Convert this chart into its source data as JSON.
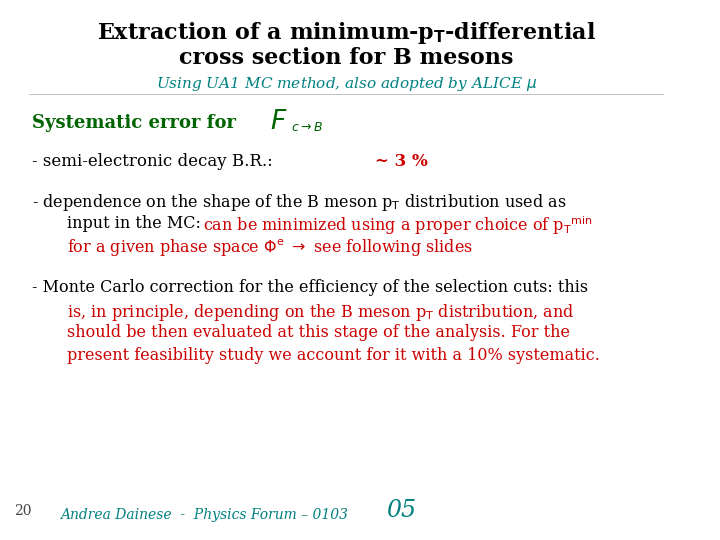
{
  "title_line1": "Extraction of a minimum-p$_\\mathbf{T}$-differential",
  "title_line2": "cross section for B mesons",
  "subtitle": "Using UA1 MC method, also adopted by ALICE $\\mu$",
  "bg_color": "#ffffff",
  "title_color": "#000000",
  "subtitle_color": "#008080",
  "dark_green": "#006400",
  "red_color": "#cc0000",
  "footer_color": "#008080",
  "slide_number": "20",
  "footer_text": "Andrea Dainese  -  Physics Forum – 0103",
  "footer_number": "05"
}
